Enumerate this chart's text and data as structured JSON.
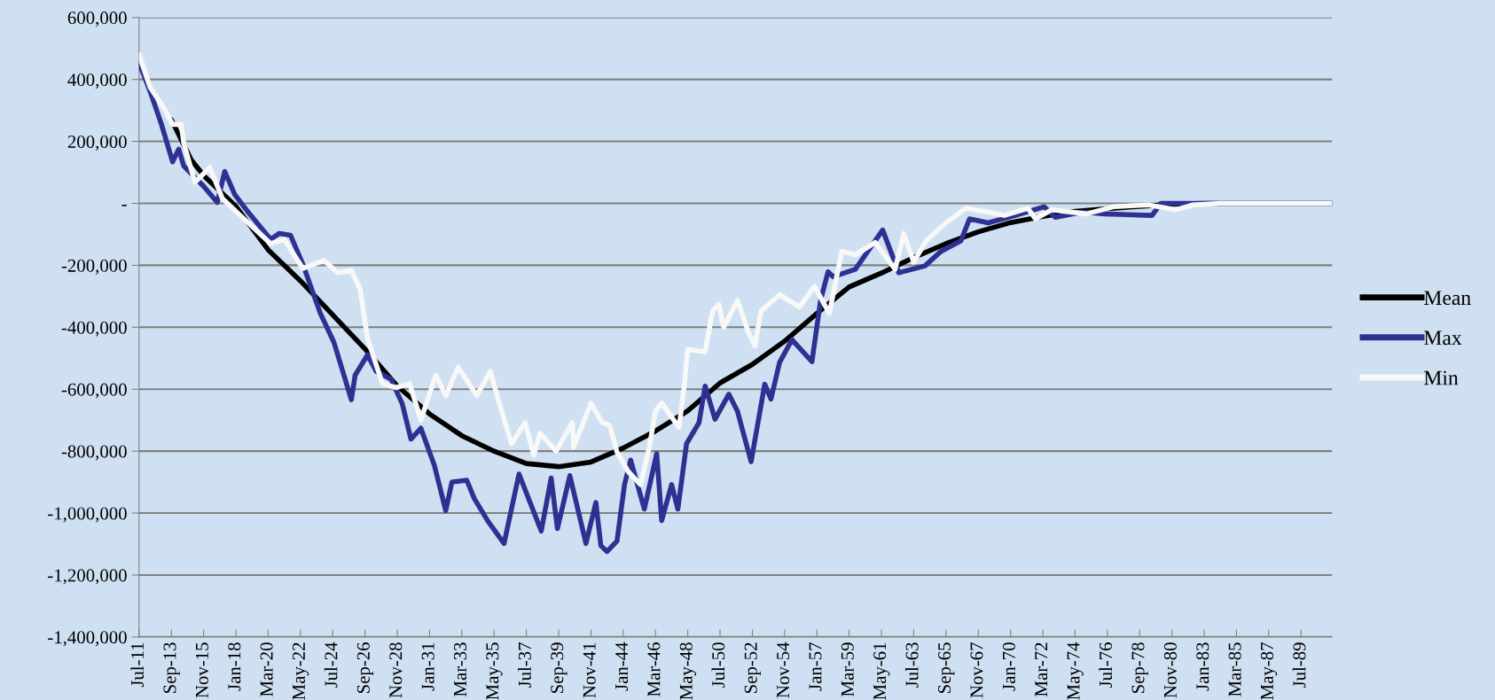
{
  "chart_data": {
    "type": "line",
    "grid": "y",
    "legend": "right",
    "marker": "none",
    "line_style": "solid",
    "xlim": [
      "2011-07",
      "2091-08"
    ],
    "ylim": [
      -1400000,
      600000
    ],
    "yticks": [
      {
        "value": -1400000,
        "label": "-1,400,000"
      },
      {
        "value": -1200000,
        "label": "-1,200,000"
      },
      {
        "value": -1000000,
        "label": "-1,000,000"
      },
      {
        "value": -800000,
        "label": "-800,000"
      },
      {
        "value": -600000,
        "label": "-600,000"
      },
      {
        "value": -400000,
        "label": "-400,000"
      },
      {
        "value": -200000,
        "label": "-200,000"
      },
      {
        "value": 0,
        "label": "-"
      },
      {
        "value": 200000,
        "label": "200,000"
      },
      {
        "value": 400000,
        "label": "400,000"
      },
      {
        "value": 600000,
        "label": "600,000"
      }
    ],
    "xticks": [
      {
        "value": "2011-07",
        "label": "Jul-11"
      },
      {
        "value": "2013-09",
        "label": "Sep-13"
      },
      {
        "value": "2015-11",
        "label": "Nov-15"
      },
      {
        "value": "2018-01",
        "label": "Jan-18"
      },
      {
        "value": "2020-03",
        "label": "Mar-20"
      },
      {
        "value": "2022-05",
        "label": "May-22"
      },
      {
        "value": "2024-07",
        "label": "Jul-24"
      },
      {
        "value": "2026-09",
        "label": "Sep-26"
      },
      {
        "value": "2028-11",
        "label": "Nov-28"
      },
      {
        "value": "2031-01",
        "label": "Jan-31"
      },
      {
        "value": "2033-03",
        "label": "Mar-33"
      },
      {
        "value": "2035-05",
        "label": "May-35"
      },
      {
        "value": "2037-07",
        "label": "Jul-37"
      },
      {
        "value": "2039-09",
        "label": "Sep-39"
      },
      {
        "value": "2041-11",
        "label": "Nov-41"
      },
      {
        "value": "2044-01",
        "label": "Jan-44"
      },
      {
        "value": "2046-03",
        "label": "Mar-46"
      },
      {
        "value": "2048-05",
        "label": "May-48"
      },
      {
        "value": "2050-07",
        "label": "Jul-50"
      },
      {
        "value": "2052-09",
        "label": "Sep-52"
      },
      {
        "value": "2054-11",
        "label": "Nov-54"
      },
      {
        "value": "2057-01",
        "label": "Jan-57"
      },
      {
        "value": "2059-03",
        "label": "Mar-59"
      },
      {
        "value": "2061-05",
        "label": "May-61"
      },
      {
        "value": "2063-07",
        "label": "Jul-63"
      },
      {
        "value": "2065-09",
        "label": "Sep-65"
      },
      {
        "value": "2067-11",
        "label": "Nov-67"
      },
      {
        "value": "2070-01",
        "label": "Jan-70"
      },
      {
        "value": "2072-03",
        "label": "Mar-72"
      },
      {
        "value": "2074-05",
        "label": "May-74"
      },
      {
        "value": "2076-07",
        "label": "Jul-76"
      },
      {
        "value": "2078-09",
        "label": "Sep-78"
      },
      {
        "value": "2080-11",
        "label": "Nov-80"
      },
      {
        "value": "2083-01",
        "label": "Jan-83"
      },
      {
        "value": "2085-03",
        "label": "Mar-85"
      },
      {
        "value": "2087-05",
        "label": "May-87"
      },
      {
        "value": "2089-07",
        "label": "Jul-89"
      }
    ],
    "series": [
      {
        "name": "Mean",
        "color": "#000000",
        "x": [
          "2013-09",
          "2015-01",
          "2015-11",
          "2018-01",
          "2020-03",
          "2022-05",
          "2024-07",
          "2026-09",
          "2028-11",
          "2031-01",
          "2033-03",
          "2035-05",
          "2037-07",
          "2039-09",
          "2041-11",
          "2044-01",
          "2046-03",
          "2048-05",
          "2050-07",
          "2052-09",
          "2054-11",
          "2057-01",
          "2059-03",
          "2061-05",
          "2063-07",
          "2065-09",
          "2067-11",
          "2070-01",
          "2072-03",
          "2074-05",
          "2076-07",
          "2078-09",
          "2080-11",
          "2083-01",
          "2091-08"
        ],
        "values": [
          270000,
          140000,
          90000,
          -10000,
          -150000,
          -250000,
          -360000,
          -470000,
          -590000,
          -680000,
          -750000,
          -800000,
          -840000,
          -850000,
          -835000,
          -790000,
          -735000,
          -670000,
          -580000,
          -520000,
          -445000,
          -355000,
          -270000,
          -225000,
          -175000,
          -130000,
          -92000,
          -62000,
          -42000,
          -26000,
          -17000,
          -10000,
          -3000,
          0,
          0
        ]
      },
      {
        "name": "Max",
        "color": "#2e3192",
        "x": [
          "2011-07",
          "2012-04",
          "2013-01",
          "2013-10",
          "2014-03",
          "2014-07",
          "2015-11",
          "2016-10",
          "2017-04",
          "2017-12",
          "2018-10",
          "2019-06",
          "2020-05",
          "2020-12",
          "2021-09",
          "2022-07",
          "2023-09",
          "2024-08",
          "2025-10",
          "2026-01",
          "2026-11",
          "2027-06",
          "2028-06",
          "2029-03",
          "2029-10",
          "2030-06",
          "2031-05",
          "2032-02",
          "2032-07",
          "2033-07",
          "2034-01",
          "2034-12",
          "2036-01",
          "2037-01",
          "2038-07",
          "2039-03",
          "2039-08",
          "2040-06",
          "2041-07",
          "2042-03",
          "2042-07",
          "2042-12",
          "2043-08",
          "2044-02",
          "2044-07",
          "2045-06",
          "2046-04",
          "2046-08",
          "2047-04",
          "2047-09",
          "2048-04",
          "2049-02",
          "2049-07",
          "2050-03",
          "2051-02",
          "2051-09",
          "2052-08",
          "2053-07",
          "2053-12",
          "2054-07",
          "2055-05",
          "2056-09",
          "2057-04",
          "2057-10",
          "2058-02",
          "2059-08",
          "2061-06",
          "2062-07",
          "2064-04",
          "2065-05",
          "2066-09",
          "2067-04",
          "2068-07",
          "2070-05",
          "2072-04",
          "2073-01",
          "2074-11",
          "2076-05",
          "2079-07",
          "2080-02",
          "2091-08"
        ],
        "values": [
          454000,
          360000,
          255000,
          134000,
          175000,
          121000,
          55000,
          3000,
          103000,
          29000,
          -24000,
          -63000,
          -116000,
          -97000,
          -103000,
          -197000,
          -355000,
          -449000,
          -634000,
          -555000,
          -489000,
          -542000,
          -568000,
          -647000,
          -761000,
          -726000,
          -847000,
          -992000,
          -900000,
          -894000,
          -953000,
          -1026000,
          -1098000,
          -874000,
          -1058000,
          -887000,
          -1050000,
          -879000,
          -1098000,
          -966000,
          -1105000,
          -1124000,
          -1090000,
          -908000,
          -829000,
          -987000,
          -808000,
          -1024000,
          -908000,
          -987000,
          -776000,
          -708000,
          -590000,
          -697000,
          -616000,
          -671000,
          -834000,
          -584000,
          -632000,
          -513000,
          -440000,
          -511000,
          -313000,
          -221000,
          -237000,
          -213000,
          -86000,
          -224000,
          -202000,
          -155000,
          -121000,
          -50000,
          -63000,
          -39000,
          -11000,
          -45000,
          -28000,
          -34000,
          -39000,
          0,
          0
        ]
      },
      {
        "name": "Min",
        "color": "#f8f8f8",
        "x": [
          "2011-07",
          "2012-04",
          "2013-03",
          "2013-10",
          "2014-05",
          "2014-07",
          "2015-04",
          "2016-04",
          "2017-02",
          "2018-04",
          "2019-06",
          "2020-05",
          "2021-04",
          "2022-07",
          "2023-12",
          "2024-11",
          "2025-10",
          "2026-05",
          "2026-11",
          "2027-11",
          "2028-10",
          "2029-09",
          "2030-06",
          "2031-06",
          "2032-02",
          "2032-12",
          "2034-03",
          "2035-02",
          "2035-08",
          "2036-07",
          "2037-06",
          "2038-01",
          "2038-06",
          "2039-07",
          "2040-08",
          "2040-09",
          "2041-11",
          "2042-08",
          "2043-02",
          "2043-08",
          "2044-05",
          "2045-03",
          "2045-10",
          "2046-03",
          "2046-08",
          "2047-10",
          "2048-02",
          "2048-05",
          "2049-07",
          "2050-01",
          "2050-06",
          "2050-10",
          "2051-09",
          "2052-06",
          "2052-11",
          "2053-04",
          "2054-07",
          "2055-11",
          "2056-11",
          "2057-11",
          "2058-09",
          "2059-08",
          "2060-12",
          "2062-04",
          "2062-11",
          "2063-07",
          "2064-05",
          "2065-09",
          "2067-01",
          "2068-07",
          "2069-08",
          "2071-03",
          "2071-09",
          "2072-10",
          "2075-02",
          "2076-12",
          "2079-04",
          "2081-02",
          "2082-04",
          "2084-02",
          "2091-08"
        ],
        "values": [
          480000,
          374000,
          308000,
          255000,
          255000,
          195000,
          68000,
          116000,
          16000,
          -37000,
          -89000,
          -130000,
          -117000,
          -210000,
          -184000,
          -224000,
          -216000,
          -276000,
          -436000,
          -582000,
          -595000,
          -582000,
          -700000,
          -555000,
          -621000,
          -529000,
          -621000,
          -542000,
          -629000,
          -776000,
          -708000,
          -813000,
          -742000,
          -800000,
          -708000,
          -787000,
          -645000,
          -708000,
          -716000,
          -803000,
          -866000,
          -908000,
          -787000,
          -671000,
          -645000,
          -724000,
          -592000,
          -471000,
          -479000,
          -347000,
          -326000,
          -400000,
          -313000,
          -418000,
          -461000,
          -347000,
          -295000,
          -334000,
          -268000,
          -355000,
          -155000,
          -166000,
          -126000,
          -213000,
          -97000,
          -190000,
          -121000,
          -63000,
          -16000,
          -28000,
          -39000,
          -16000,
          -50000,
          -21000,
          -34000,
          -11000,
          -5000,
          -21000,
          -5000,
          0,
          0
        ]
      }
    ]
  }
}
